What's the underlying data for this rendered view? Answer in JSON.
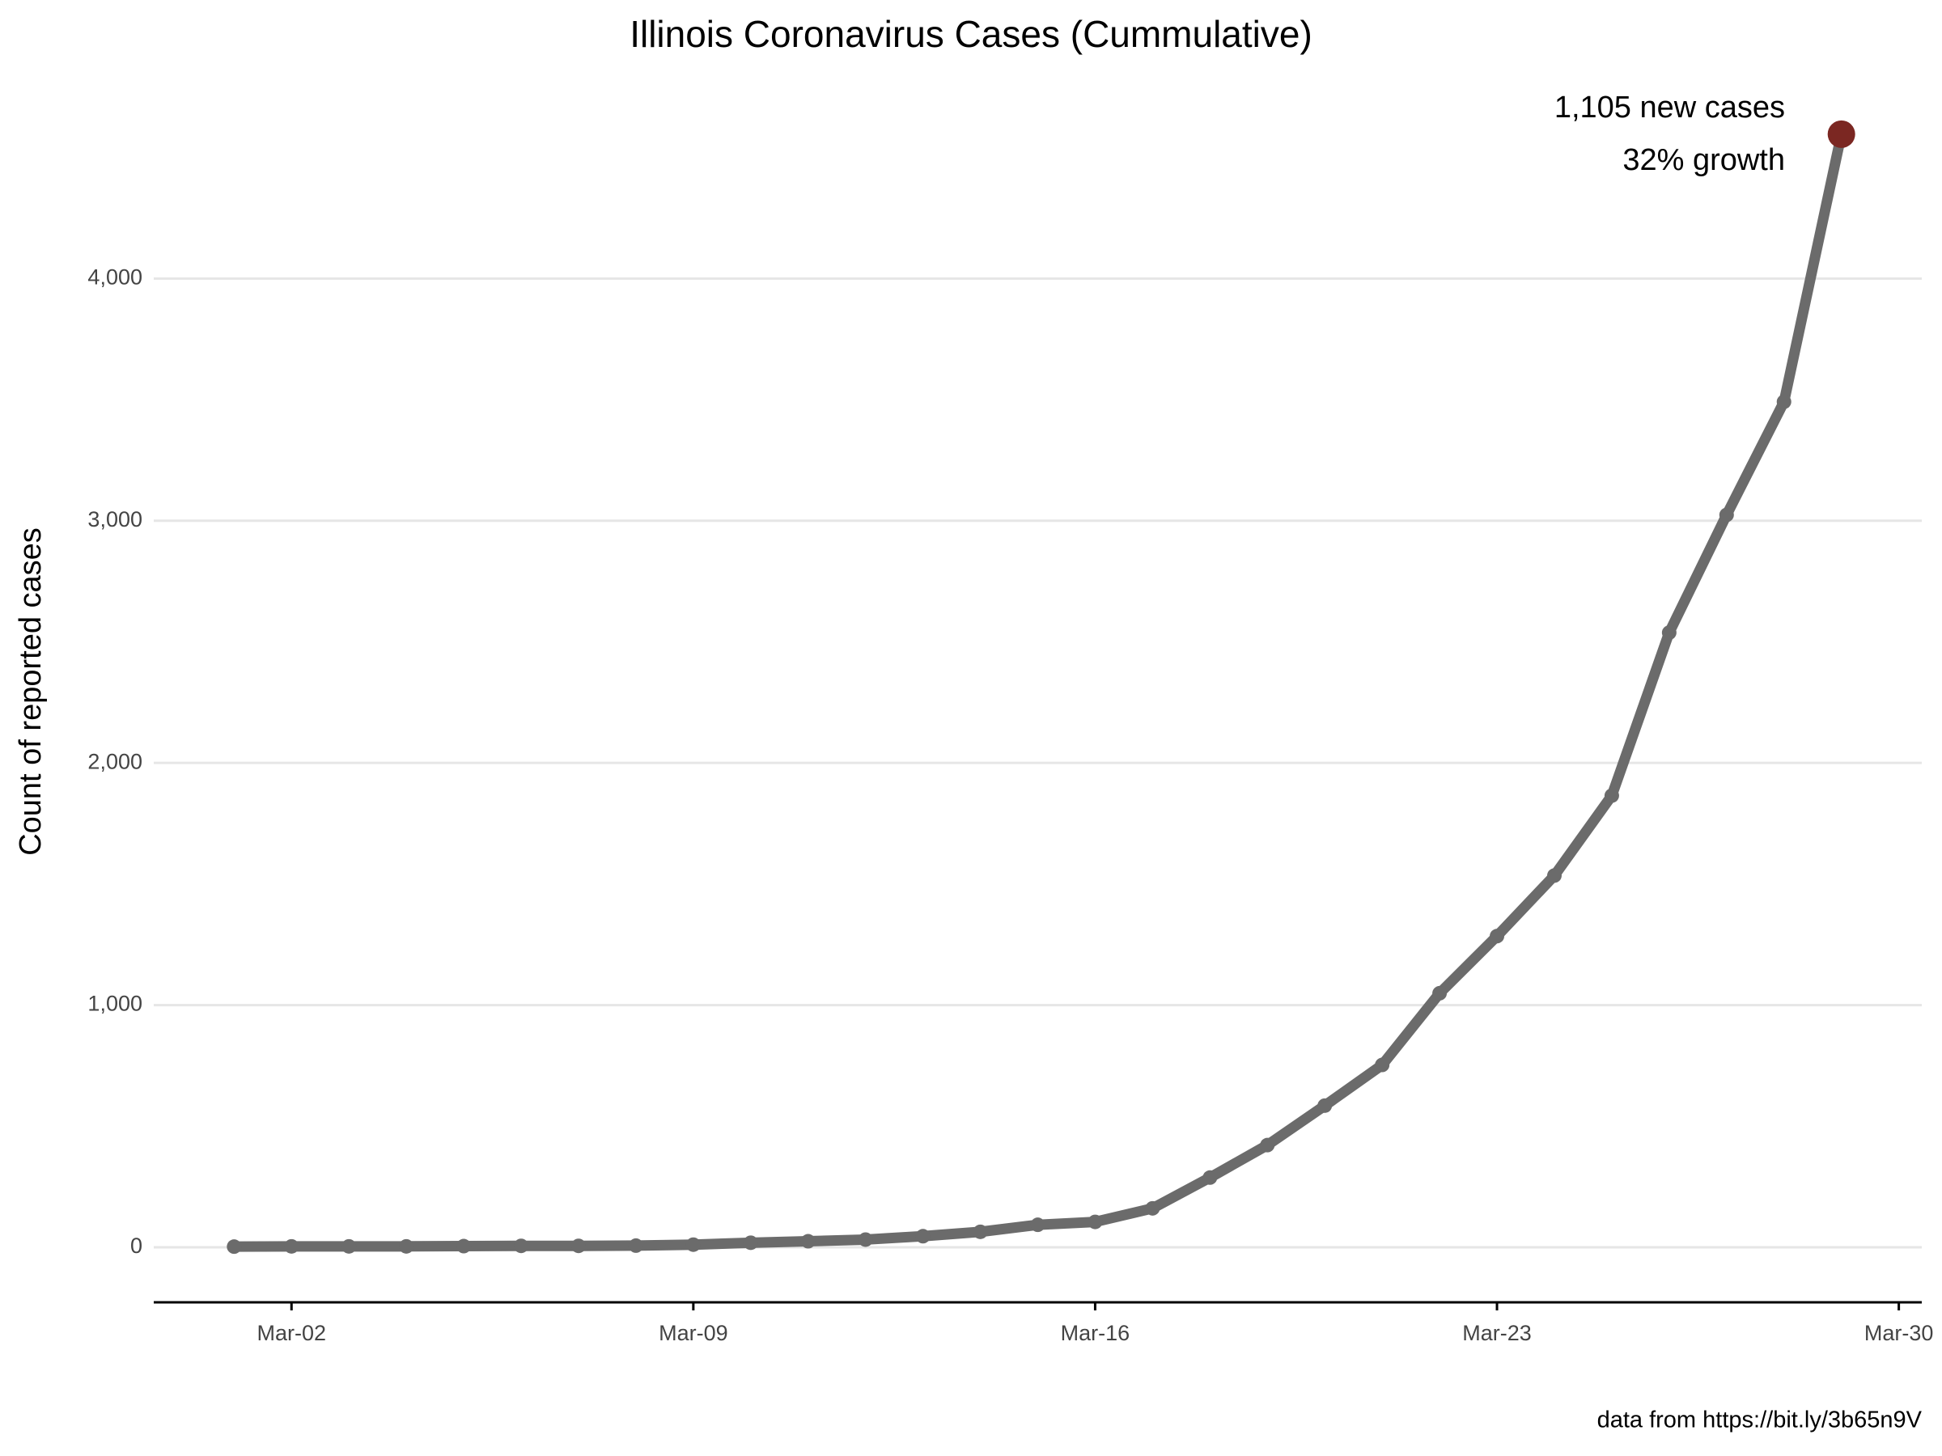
{
  "chart_data": {
    "type": "line",
    "title": "Illinois Coronavirus Cases (Cummulative)",
    "y_label": "Count of reported cases",
    "caption": "data from https://bit.ly/3b65n9V",
    "annotations": [
      "1,105 new cases",
      "32% growth"
    ],
    "x": [
      1,
      2,
      3,
      4,
      5,
      6,
      7,
      8,
      9,
      10,
      11,
      12,
      13,
      14,
      15,
      16,
      17,
      18,
      19,
      20,
      21,
      22,
      23,
      24,
      25,
      26,
      27,
      28,
      29
    ],
    "values": [
      3,
      4,
      4,
      4,
      5,
      6,
      6,
      7,
      11,
      19,
      25,
      32,
      46,
      64,
      93,
      105,
      161,
      288,
      422,
      585,
      753,
      1049,
      1285,
      1535,
      1865,
      2538,
      3024,
      3491,
      4596
    ],
    "color": "#6b6b6b",
    "highlight_color": "#7b2722",
    "xlim": [
      -0.4,
      30.4
    ],
    "xticks": [
      {
        "value": 2,
        "label": "Mar-02"
      },
      {
        "value": 9,
        "label": "Mar-09"
      },
      {
        "value": 16,
        "label": "Mar-16"
      },
      {
        "value": 23,
        "label": "Mar-23"
      },
      {
        "value": 30,
        "label": "Mar-30"
      }
    ],
    "ylim": [
      -227,
      4826
    ],
    "yticks": [
      0,
      {
        "value": 1000,
        "label": "1,000"
      },
      {
        "value": 2000,
        "label": "2,000"
      },
      {
        "value": 3000,
        "label": "3,000"
      },
      {
        "value": 4000,
        "label": "4,000"
      }
    ],
    "grid": true
  }
}
